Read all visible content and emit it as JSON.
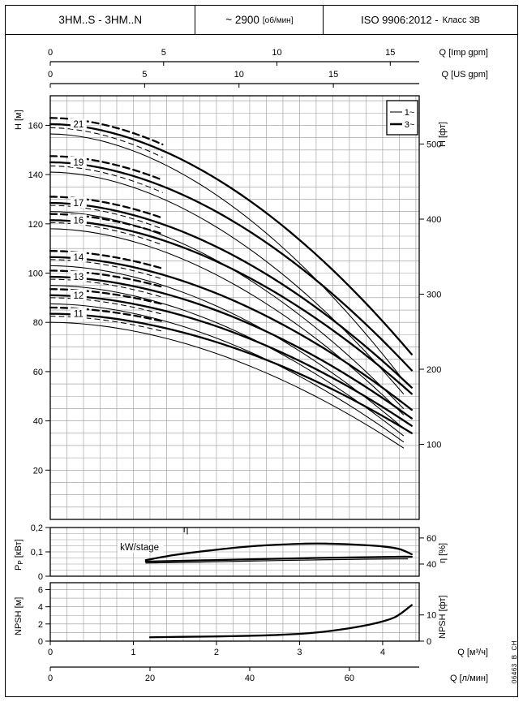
{
  "header": {
    "model": "3HM..S - 3HM..N",
    "speed_value": "~ 2900",
    "speed_unit": "[об/мин]",
    "standard": "ISO 9906:2012 -",
    "standard_class": "Класс 3В"
  },
  "side_code": "06463_B_CH",
  "colors": {
    "ink": "#000000",
    "grid": "#999999",
    "paper": "#ffffff"
  },
  "chart_data": [
    {
      "type": "line",
      "name": "head-vs-flow",
      "x_axis": {
        "label": "Q [м³/ч]",
        "min": 0,
        "max": 4.44,
        "ticks": [
          0,
          1,
          2,
          3,
          4
        ]
      },
      "x_axes_extra": [
        {
          "label": "Q [Imp gpm]",
          "ticks": [
            0,
            5,
            10,
            15
          ],
          "to_m3h": 0.27276,
          "pos": "top-outer"
        },
        {
          "label": "Q [US gpm]",
          "ticks": [
            0,
            5,
            10,
            15
          ],
          "to_m3h": 0.22712,
          "pos": "top-inner"
        },
        {
          "label": "Q [л/мин]",
          "ticks": [
            0,
            20,
            40,
            60
          ],
          "to_m3h": 0.06,
          "pos": "bottom"
        }
      ],
      "y_axis_left": {
        "label": "H [м]",
        "min": 0,
        "max": 172,
        "ticks": [
          20,
          40,
          60,
          80,
          100,
          120,
          140,
          160
        ]
      },
      "y_axis_right": {
        "label": "H [фт]",
        "ticks": [
          100,
          200,
          300,
          400,
          500
        ],
        "to_m": 0.3048
      },
      "legend": [
        {
          "label": "1~",
          "style": "thin"
        },
        {
          "label": "3~",
          "style": "thick"
        }
      ],
      "grid": true,
      "curve_exponent": 1.85,
      "dashed_overlay": {
        "q_min": 0,
        "q_max": 1.35,
        "offset_m": 2.5
      },
      "series": [
        {
          "stage": "21",
          "three_phase": {
            "h0": 160.5,
            "h_end": 67,
            "q_end": 4.35
          },
          "single_phase": {
            "h0": 156.5,
            "h_end": 56.5,
            "q_end": 4.25
          }
        },
        {
          "stage": "19",
          "three_phase": {
            "h0": 145,
            "h_end": 60.5,
            "q_end": 4.35
          },
          "single_phase": {
            "h0": 141,
            "h_end": 51,
            "q_end": 4.25
          }
        },
        {
          "stage": "17",
          "three_phase": {
            "h0": 128.5,
            "h_end": 53.5,
            "q_end": 4.35
          },
          "single_phase": {
            "h0": 125,
            "h_end": 45,
            "q_end": 4.25
          }
        },
        {
          "stage": "16",
          "three_phase": {
            "h0": 121.5,
            "h_end": 51,
            "q_end": 4.35
          },
          "single_phase": {
            "h0": 118,
            "h_end": 42.5,
            "q_end": 4.25
          }
        },
        {
          "stage": "14",
          "three_phase": {
            "h0": 106.5,
            "h_end": 44.5,
            "q_end": 4.35
          },
          "single_phase": {
            "h0": 103,
            "h_end": 37,
            "q_end": 4.25
          }
        },
        {
          "stage": "13",
          "three_phase": {
            "h0": 98.5,
            "h_end": 41,
            "q_end": 4.35
          },
          "single_phase": {
            "h0": 95,
            "h_end": 34,
            "q_end": 4.25
          }
        },
        {
          "stage": "12",
          "three_phase": {
            "h0": 91,
            "h_end": 38,
            "q_end": 4.35
          },
          "single_phase": {
            "h0": 87.5,
            "h_end": 31.5,
            "q_end": 4.25
          }
        },
        {
          "stage": "11",
          "three_phase": {
            "h0": 83.5,
            "h_end": 35,
            "q_end": 4.35
          },
          "single_phase": {
            "h0": 80,
            "h_end": 29,
            "q_end": 4.25
          }
        }
      ]
    },
    {
      "type": "line",
      "name": "power-efficiency-vs-flow",
      "y_axis_left": {
        "label_parts": [
          [
            "n",
            "P"
          ],
          [
            "s",
            "P"
          ],
          [
            "n",
            " [кВт]"
          ]
        ],
        "min": 0,
        "max": 0.2,
        "ticks": [
          {
            "v": 0,
            "t": "0"
          },
          {
            "v": 0.1,
            "t": "0,1"
          },
          {
            "v": 0.2,
            "t": "0,2"
          }
        ]
      },
      "y_axis_right": {
        "label": "η [%]",
        "ticks": [
          40,
          60
        ],
        "p_at_40": 0.05,
        "p_at_60": 0.157
      },
      "grid": true,
      "series": [
        {
          "name": "eta",
          "axis": "eta",
          "style": "thick",
          "points": [
            [
              1.15,
              43
            ],
            [
              1.5,
              47
            ],
            [
              2.0,
              51
            ],
            [
              2.5,
              54
            ],
            [
              3.0,
              55.5
            ],
            [
              3.3,
              55.7
            ],
            [
              3.7,
              54.8
            ],
            [
              4.0,
              53.5
            ],
            [
              4.2,
              51.5
            ],
            [
              4.35,
              47.5
            ]
          ]
        },
        {
          "name": "kW/stage 3~",
          "axis": "power",
          "style": "thick",
          "points": [
            [
              1.15,
              0.06
            ],
            [
              1.8,
              0.065
            ],
            [
              2.5,
              0.07
            ],
            [
              3.2,
              0.075
            ],
            [
              3.8,
              0.078
            ],
            [
              4.2,
              0.08
            ],
            [
              4.35,
              0.08
            ]
          ]
        },
        {
          "name": "kW/stage 1~",
          "axis": "power",
          "style": "thin",
          "points": [
            [
              1.15,
              0.054
            ],
            [
              1.8,
              0.058
            ],
            [
              2.5,
              0.063
            ],
            [
              3.2,
              0.067
            ],
            [
              3.8,
              0.07
            ],
            [
              4.15,
              0.071
            ],
            [
              4.3,
              0.071
            ]
          ]
        }
      ],
      "annotations": [
        {
          "text": "η",
          "q": 1.63,
          "p": 0.18,
          "bg": false
        },
        {
          "text": "kW/stage",
          "q": 0.84,
          "p": 0.107,
          "bg": true
        }
      ]
    },
    {
      "type": "line",
      "name": "npsh-vs-flow",
      "y_axis_left": {
        "label": "NPSH [м]",
        "min": 0,
        "max": 6.8,
        "ticks": [
          0,
          2,
          4,
          6
        ]
      },
      "y_axis_right": {
        "label": "NPSH [фт]",
        "ticks": [
          0,
          10
        ],
        "to_m": 0.3048
      },
      "grid": true,
      "series": [
        {
          "name": "NPSH",
          "axis": "left",
          "style": "thick",
          "points": [
            [
              1.2,
              0.45
            ],
            [
              1.6,
              0.5
            ],
            [
              2.0,
              0.55
            ],
            [
              2.4,
              0.62
            ],
            [
              2.8,
              0.75
            ],
            [
              3.2,
              1.0
            ],
            [
              3.6,
              1.5
            ],
            [
              3.9,
              2.05
            ],
            [
              4.15,
              2.8
            ],
            [
              4.35,
              4.2
            ]
          ]
        }
      ]
    }
  ]
}
